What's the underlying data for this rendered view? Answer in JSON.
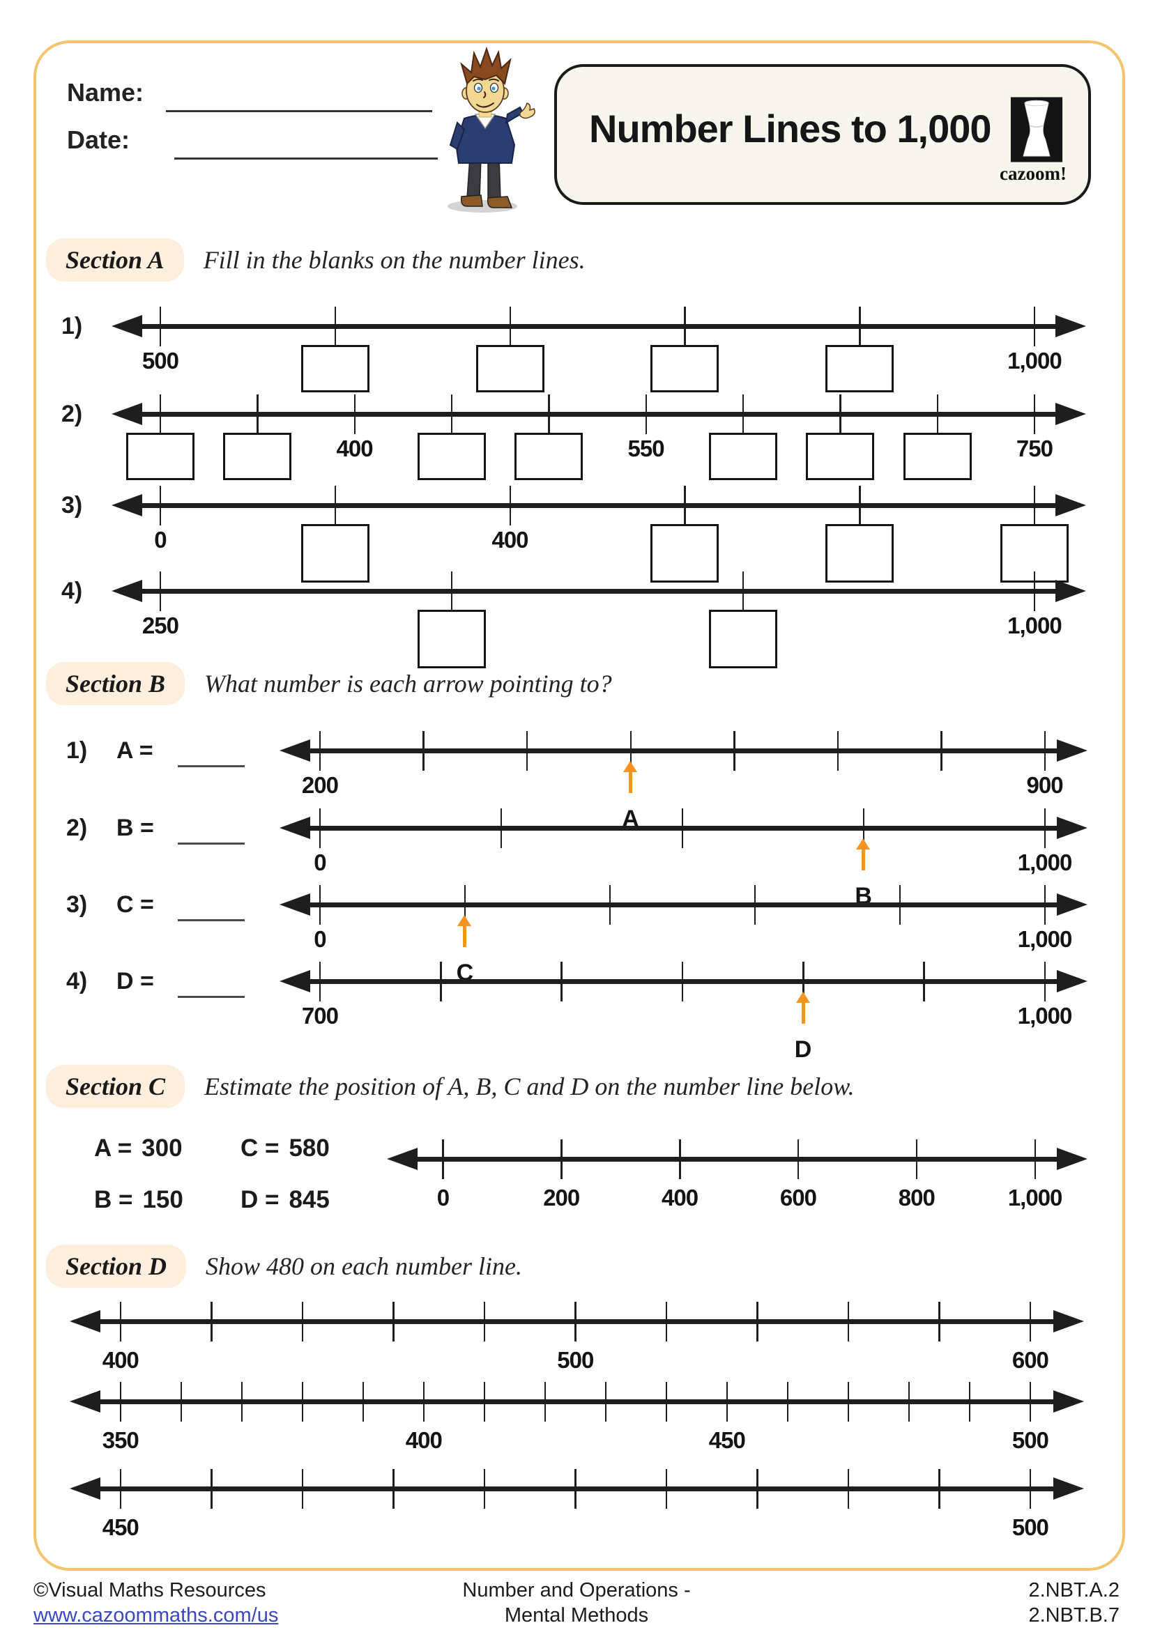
{
  "header": {
    "name_label": "Name:",
    "date_label": "Date:",
    "title": "Number Lines to 1,000",
    "brand": "cazoom!"
  },
  "sections": {
    "a": {
      "label": "Section A",
      "instruction": "Fill in the blanks on the number lines.",
      "items": [
        {
          "num": "1)"
        },
        {
          "num": "2)"
        },
        {
          "num": "3)"
        },
        {
          "num": "4)"
        }
      ]
    },
    "b": {
      "label": "Section B",
      "instruction": "What number is each arrow pointing to?",
      "items": [
        {
          "num": "1)",
          "prompt": "A ="
        },
        {
          "num": "2)",
          "prompt": "B ="
        },
        {
          "num": "3)",
          "prompt": "C ="
        },
        {
          "num": "4)",
          "prompt": "D ="
        }
      ]
    },
    "c": {
      "label": "Section C",
      "instruction": "Estimate the position of A, B, C and D on the number line below.",
      "values": [
        {
          "letter": "A =",
          "value": "300"
        },
        {
          "letter": "B =",
          "value": "150"
        },
        {
          "letter": "C =",
          "value": "580"
        },
        {
          "letter": "D =",
          "value": "845"
        }
      ]
    },
    "d": {
      "label": "Section D",
      "instruction": "Show 480 on each number line."
    }
  },
  "numlines": {
    "a1": {
      "ticks": [
        "500",
        "□",
        "□",
        "□",
        "□",
        "1,000"
      ]
    },
    "a2": {
      "ticks": [
        "□",
        "□",
        "400",
        "□",
        "□",
        "550",
        "□",
        "□",
        "□",
        "750"
      ]
    },
    "a3": {
      "ticks": [
        "0",
        "□",
        "400",
        "□",
        "□",
        "□"
      ]
    },
    "a4": {
      "ticks": [
        "250",
        "□",
        "□",
        "1,000"
      ]
    },
    "b1": {
      "ticks": [
        "200",
        "",
        "",
        "",
        "",
        "",
        "",
        "900"
      ],
      "arrow": {
        "index": 3,
        "label": "A"
      }
    },
    "b2": {
      "ticks": [
        "0",
        "",
        "",
        "",
        "1,000"
      ],
      "arrow": {
        "index": 3,
        "label": "B"
      }
    },
    "b3": {
      "ticks": [
        "0",
        "",
        "",
        "",
        "",
        "1,000"
      ],
      "arrow": {
        "index": 1,
        "label": "C"
      }
    },
    "b4": {
      "ticks": [
        "700",
        "",
        "",
        "",
        "",
        "",
        "1,000"
      ],
      "arrow": {
        "index": 4,
        "label": "D"
      }
    },
    "c1": {
      "ticks": [
        "0",
        "200",
        "400",
        "600",
        "800",
        "1,000"
      ]
    },
    "d1": {
      "ticks": [
        "400",
        "",
        "",
        "",
        "",
        "500",
        "",
        "",
        "",
        "",
        "600"
      ]
    },
    "d2": {
      "ticks": [
        "350",
        "",
        "",
        "",
        "",
        "400",
        "",
        "",
        "",
        "",
        "450",
        "",
        "",
        "",
        "",
        "500"
      ]
    },
    "d3": {
      "ticks": [
        "450",
        "",
        "",
        "",
        "",
        "",
        "",
        "",
        "",
        "",
        "500"
      ]
    }
  },
  "footer": {
    "copyright": "©Visual Maths Resources",
    "website": "www.cazoommaths.com/us",
    "center_line1": "Number and Operations -",
    "center_line2": "Mental Methods",
    "standard_line1": "2.NBT.A.2",
    "standard_line2": "2.NBT.B.7"
  },
  "colors": {
    "frame_border": "#f3c36d",
    "section_pill_bg": "#fdeede",
    "pointer_arrow_orange": "#f5941f",
    "link_blue": "#3947c3",
    "line_black": "#1e1e1e"
  }
}
